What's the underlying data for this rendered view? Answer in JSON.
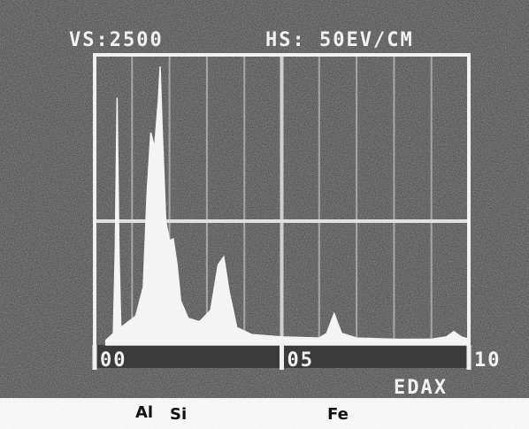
{
  "chart_data": {
    "type": "area",
    "header_left": "VS:2500",
    "header_right": "HS: 50EV/CM",
    "brand": "EDAX",
    "element_labels": [
      "Al",
      "Si",
      "Fe"
    ],
    "x": [
      0.3,
      0.5,
      0.55,
      0.6,
      0.65,
      0.7,
      0.9,
      1.1,
      1.3,
      1.4,
      1.5,
      1.6,
      1.7,
      1.75,
      1.8,
      1.9,
      2.0,
      2.1,
      2.2,
      2.3,
      2.5,
      2.8,
      3.1,
      3.3,
      3.45,
      3.6,
      3.8,
      4.2,
      5,
      6,
      6.2,
      6.4,
      6.6,
      7,
      8,
      9,
      9.4,
      9.6,
      9.8,
      10
    ],
    "values": [
      40,
      100,
      800,
      2130,
      800,
      150,
      200,
      250,
      500,
      1300,
      1830,
      1700,
      2100,
      2400,
      1900,
      1070,
      900,
      915,
      700,
      380,
      230,
      200,
      300,
      690,
      760,
      450,
      150,
      90,
      70,
      60,
      100,
      270,
      100,
      60,
      50,
      50,
      70,
      115,
      70,
      50
    ],
    "color": "#f4f4f4",
    "xlim": [
      0,
      10
    ],
    "ylim": [
      0,
      2500
    ],
    "xticks": [
      {
        "value": 0,
        "label": "00"
      },
      {
        "value": 5,
        "label": "05"
      },
      {
        "value": 10,
        "label": "10"
      }
    ]
  }
}
